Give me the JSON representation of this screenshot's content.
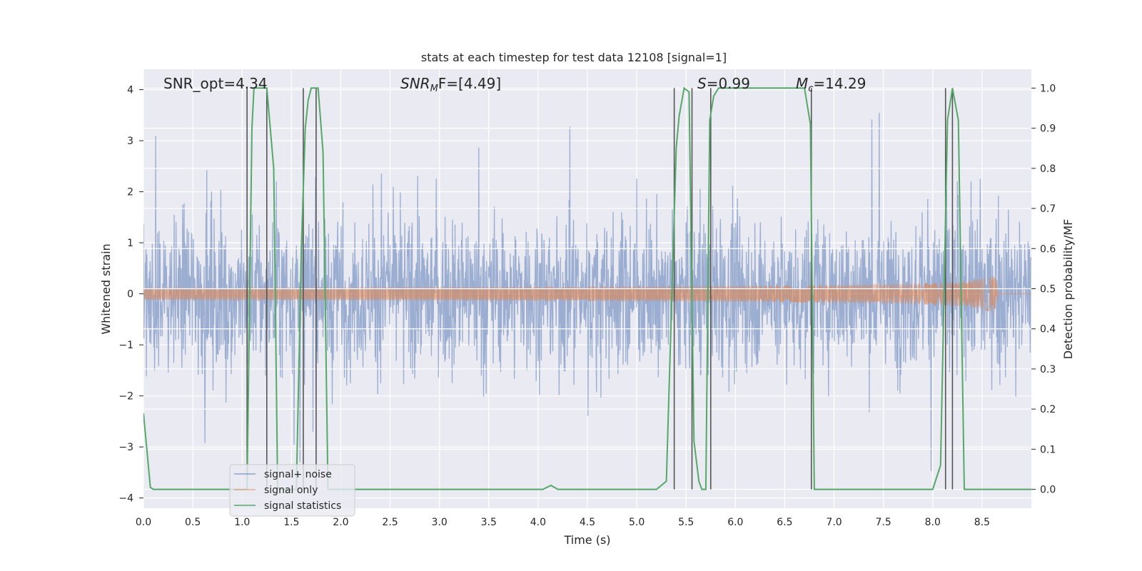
{
  "chart_data": {
    "type": "line",
    "title": "stats at each timestep for test data 12108 [signal=1]",
    "xlabel": "Time (s)",
    "ylabel_left": "Whitened strain",
    "ylabel_right": "Detection probability/MF",
    "xlim": [
      0.0,
      9.0
    ],
    "ylim_left": [
      -4.2,
      4.4
    ],
    "ylim_right": [
      -0.047,
      1.047
    ],
    "x_ticks": [
      "0.0",
      "0.5",
      "1.0",
      "1.5",
      "2.0",
      "2.5",
      "3.0",
      "3.5",
      "4.0",
      "4.5",
      "5.0",
      "5.5",
      "6.0",
      "6.5",
      "7.0",
      "7.5",
      "8.0",
      "8.5"
    ],
    "y_left_ticks": [
      "−4",
      "−3",
      "−2",
      "−1",
      "0",
      "1",
      "2",
      "3",
      "4"
    ],
    "y_right_ticks": [
      "0.0",
      "0.1",
      "0.2",
      "0.3",
      "0.4",
      "0.5",
      "0.6",
      "0.7",
      "0.8",
      "0.9",
      "1.0"
    ],
    "grid": true,
    "legend_placement": "lower-left",
    "annotations": {
      "snr_opt": "SNR_opt=4.34",
      "snr_mf_prefix": "SNR",
      "snr_mf_sub": "M",
      "snr_mf_suffix": "F=[4.49]",
      "s_label": "S",
      "s_value": "=0.99",
      "mc_label": "M",
      "mc_sub": "c",
      "mc_value": "=14.29"
    },
    "series": [
      {
        "name": "signal+ noise",
        "axis": "left",
        "color": "#4c72b0",
        "description": "whitened noisy strain, band mostly within ±1.7 with spikes to about ±3.7",
        "envelope": {
          "typical_amplitude": 1.7,
          "max_spike": 3.7,
          "min_spike": -3.8
        }
      },
      {
        "name": "signal only",
        "axis": "left",
        "color": "#dd8452",
        "description": "chirp signal, near zero, growing amplitude up to about 0.85 at t=8.66",
        "chirp": {
          "peak_time": 8.66,
          "peak_amplitude": 0.85
        }
      },
      {
        "name": "signal statistics",
        "axis": "right",
        "color": "#55a868",
        "x": [
          0.0,
          0.07,
          0.1,
          0.15,
          1.0,
          1.05,
          1.1,
          1.12,
          1.25,
          1.32,
          1.36,
          1.55,
          1.6,
          1.64,
          1.67,
          1.7,
          1.77,
          1.82,
          1.87,
          4.0,
          4.05,
          4.13,
          4.2,
          4.28,
          5.2,
          5.3,
          5.4,
          5.43,
          5.48,
          5.53,
          5.58,
          5.63,
          5.66,
          5.7,
          5.74,
          5.78,
          5.83,
          5.9,
          6.0,
          6.7,
          6.76,
          6.8,
          6.85,
          8.0,
          8.08,
          8.15,
          8.2,
          8.26,
          8.32,
          8.43,
          9.0
        ],
        "values": [
          0.19,
          0.005,
          0.0,
          0.0,
          0.0,
          0.0,
          0.9,
          1.0,
          1.0,
          0.8,
          0.0,
          0.0,
          0.6,
          0.9,
          0.97,
          1.0,
          1.0,
          0.84,
          0.0,
          0.0,
          0.0,
          0.01,
          0.0,
          0.0,
          0.0,
          0.02,
          0.85,
          0.93,
          1.0,
          0.99,
          0.12,
          0.02,
          0.0,
          0.0,
          0.92,
          0.98,
          1.0,
          1.0,
          1.0,
          1.0,
          0.91,
          0.0,
          0.0,
          0.0,
          0.06,
          0.92,
          1.0,
          0.92,
          0.0,
          0.0,
          0.0
        ]
      }
    ],
    "vlines": [
      1.05,
      1.25,
      1.62,
      1.75,
      5.38,
      5.56,
      5.75,
      6.77,
      8.13,
      8.2
    ]
  }
}
